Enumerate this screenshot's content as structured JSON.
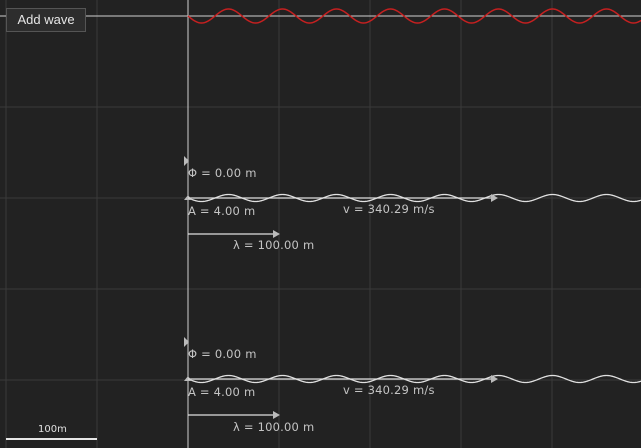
{
  "toolbar": {
    "add_wave_label": "Add wave"
  },
  "scale": {
    "label": "100m"
  },
  "colors": {
    "background": "#222222",
    "grid": "#3a3a3a",
    "axis": "#d0d0d0",
    "superposition": "#c42020",
    "wave": "#e0e0e0",
    "handle": "#bbbbbb"
  },
  "waves": [
    {
      "phase": {
        "prefix": "Φ =",
        "value": "0.00",
        "unit": "m"
      },
      "amplitude": {
        "prefix": "A =",
        "value": "4.00",
        "unit": "m"
      },
      "velocity": {
        "prefix": "v =",
        "value": "340.29",
        "unit": "m/s"
      },
      "wavelength": {
        "prefix": "λ =",
        "value": "100.00",
        "unit": "m"
      }
    },
    {
      "phase": {
        "prefix": "Φ =",
        "value": "0.00",
        "unit": "m"
      },
      "amplitude": {
        "prefix": "A =",
        "value": "4.00",
        "unit": "m"
      },
      "velocity": {
        "prefix": "v =",
        "value": "340.29",
        "unit": "m/s"
      },
      "wavelength": {
        "prefix": "λ =",
        "value": "100.00",
        "unit": "m"
      }
    }
  ]
}
